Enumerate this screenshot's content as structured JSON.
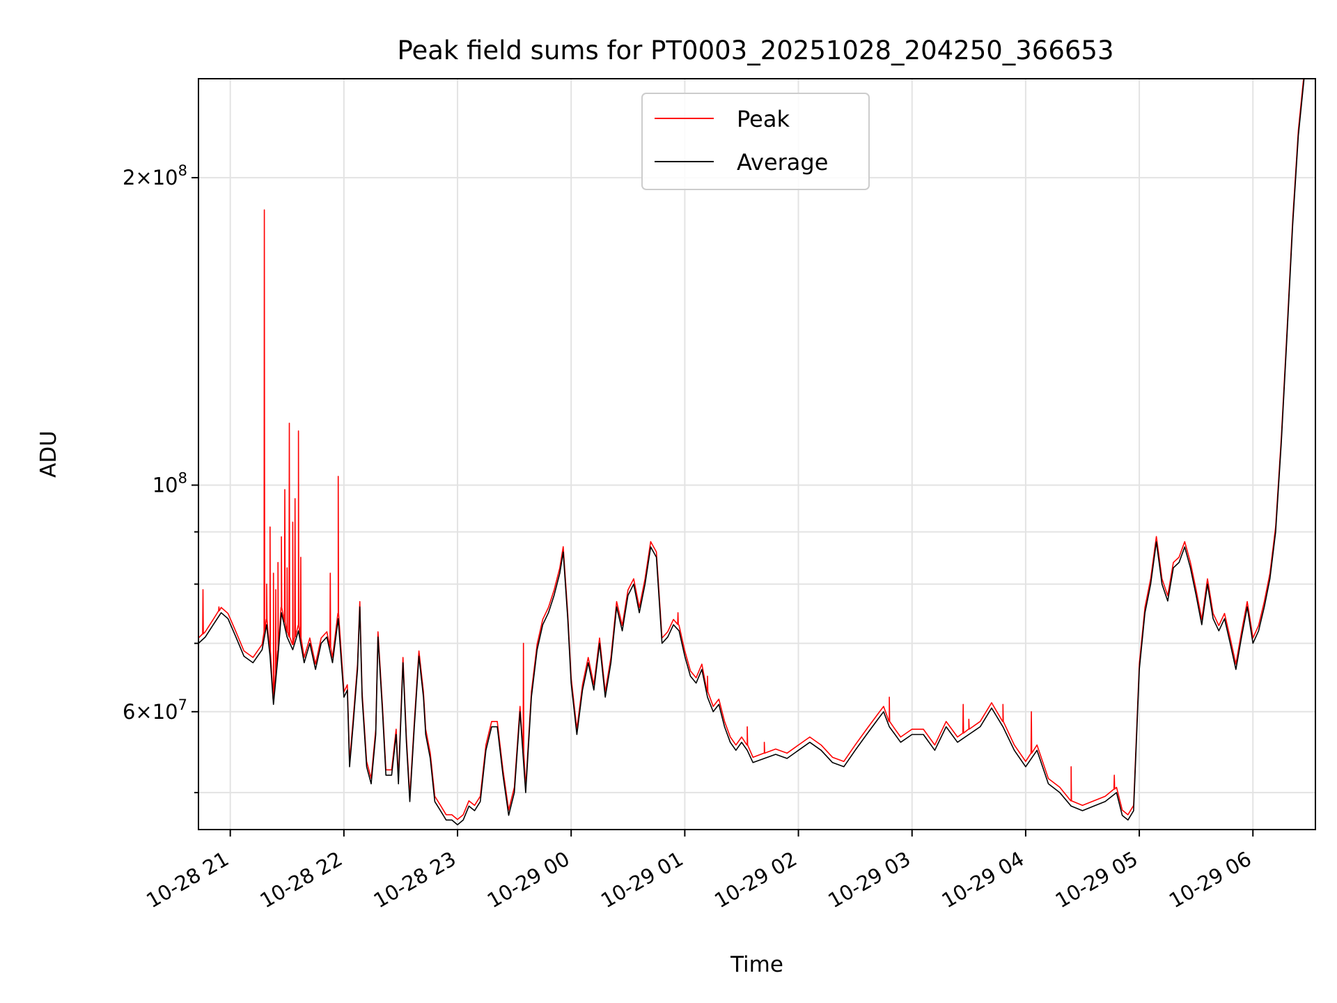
{
  "chart_data": {
    "type": "line",
    "title": "Peak field sums for PT0003_20251028_204250_366653",
    "xlabel": "Time",
    "ylabel": "ADU",
    "x_unit": "hours since 10-28 20:00",
    "xlim": [
      0.72,
      10.55
    ],
    "ylim": [
      46000000,
      250000000
    ],
    "yscale": "log",
    "grid": true,
    "legend_position": "top-center",
    "x_ticks": [
      {
        "x": 1,
        "label": "10-28 21"
      },
      {
        "x": 2,
        "label": "10-28 22"
      },
      {
        "x": 3,
        "label": "10-28 23"
      },
      {
        "x": 4,
        "label": "10-29 00"
      },
      {
        "x": 5,
        "label": "10-29 01"
      },
      {
        "x": 6,
        "label": "10-29 02"
      },
      {
        "x": 7,
        "label": "10-29 03"
      },
      {
        "x": 8,
        "label": "10-29 04"
      },
      {
        "x": 9,
        "label": "10-29 05"
      },
      {
        "x": 10,
        "label": "10-29 06"
      }
    ],
    "y_ticks": [
      {
        "y": 60000000,
        "base": "6",
        "exp": "7"
      },
      {
        "y": 100000000,
        "base": "",
        "exp": "8"
      },
      {
        "y": 200000000,
        "base": "2",
        "exp": "8"
      }
    ],
    "y_minor": [
      50000000,
      70000000,
      80000000,
      90000000,
      300000000
    ],
    "series": [
      {
        "name": "Average",
        "color": "#000000",
        "points": [
          [
            0.72,
            70
          ],
          [
            0.78,
            71
          ],
          [
            0.85,
            73
          ],
          [
            0.92,
            75
          ],
          [
            0.98,
            74
          ],
          [
            1.05,
            71
          ],
          [
            1.12,
            68
          ],
          [
            1.2,
            67
          ],
          [
            1.28,
            69
          ],
          [
            1.32,
            73
          ],
          [
            1.35,
            68
          ],
          [
            1.38,
            61
          ],
          [
            1.42,
            68
          ],
          [
            1.45,
            75
          ],
          [
            1.5,
            71
          ],
          [
            1.55,
            69
          ],
          [
            1.6,
            72
          ],
          [
            1.65,
            67
          ],
          [
            1.7,
            70
          ],
          [
            1.75,
            66
          ],
          [
            1.8,
            70
          ],
          [
            1.85,
            71
          ],
          [
            1.9,
            67
          ],
          [
            1.95,
            74
          ],
          [
            2.0,
            62
          ],
          [
            2.03,
            63
          ],
          [
            2.05,
            53
          ],
          [
            2.08,
            58
          ],
          [
            2.12,
            66
          ],
          [
            2.14,
            76
          ],
          [
            2.16,
            62
          ],
          [
            2.2,
            53
          ],
          [
            2.24,
            51
          ],
          [
            2.28,
            57
          ],
          [
            2.3,
            71
          ],
          [
            2.34,
            60
          ],
          [
            2.37,
            52
          ],
          [
            2.42,
            52
          ],
          [
            2.46,
            57
          ],
          [
            2.48,
            51
          ],
          [
            2.52,
            67
          ],
          [
            2.55,
            56
          ],
          [
            2.58,
            49
          ],
          [
            2.62,
            58
          ],
          [
            2.66,
            68
          ],
          [
            2.7,
            62
          ],
          [
            2.72,
            57
          ],
          [
            2.76,
            54
          ],
          [
            2.8,
            49
          ],
          [
            2.85,
            48
          ],
          [
            2.9,
            47
          ],
          [
            2.95,
            47
          ],
          [
            3.0,
            46.5
          ],
          [
            3.05,
            47
          ],
          [
            3.1,
            48.5
          ],
          [
            3.15,
            48
          ],
          [
            3.2,
            49
          ],
          [
            3.25,
            55
          ],
          [
            3.3,
            58
          ],
          [
            3.35,
            58
          ],
          [
            3.4,
            52
          ],
          [
            3.45,
            47.5
          ],
          [
            3.5,
            50
          ],
          [
            3.55,
            60
          ],
          [
            3.6,
            50
          ],
          [
            3.65,
            62
          ],
          [
            3.7,
            69
          ],
          [
            3.75,
            73
          ],
          [
            3.8,
            75
          ],
          [
            3.85,
            78
          ],
          [
            3.9,
            82
          ],
          [
            3.93,
            86
          ],
          [
            3.97,
            74
          ],
          [
            4.0,
            64
          ],
          [
            4.05,
            57
          ],
          [
            4.1,
            63
          ],
          [
            4.15,
            67
          ],
          [
            4.2,
            63
          ],
          [
            4.25,
            70
          ],
          [
            4.3,
            62
          ],
          [
            4.35,
            67
          ],
          [
            4.4,
            76
          ],
          [
            4.45,
            72
          ],
          [
            4.5,
            78
          ],
          [
            4.55,
            80
          ],
          [
            4.6,
            75
          ],
          [
            4.65,
            80
          ],
          [
            4.7,
            87
          ],
          [
            4.75,
            85
          ],
          [
            4.8,
            70
          ],
          [
            4.85,
            71
          ],
          [
            4.9,
            73
          ],
          [
            4.95,
            72
          ],
          [
            5.0,
            68
          ],
          [
            5.05,
            65
          ],
          [
            5.1,
            64
          ],
          [
            5.15,
            66
          ],
          [
            5.2,
            62
          ],
          [
            5.25,
            60
          ],
          [
            5.3,
            61
          ],
          [
            5.35,
            58
          ],
          [
            5.4,
            56
          ],
          [
            5.45,
            55
          ],
          [
            5.5,
            56
          ],
          [
            5.55,
            55
          ],
          [
            5.6,
            53.5
          ],
          [
            5.7,
            54
          ],
          [
            5.8,
            54.5
          ],
          [
            5.9,
            54
          ],
          [
            6.0,
            55
          ],
          [
            6.1,
            56
          ],
          [
            6.2,
            55
          ],
          [
            6.3,
            53.5
          ],
          [
            6.4,
            53
          ],
          [
            6.5,
            55
          ],
          [
            6.6,
            57
          ],
          [
            6.7,
            59
          ],
          [
            6.75,
            60
          ],
          [
            6.8,
            58
          ],
          [
            6.85,
            57
          ],
          [
            6.9,
            56
          ],
          [
            7.0,
            57
          ],
          [
            7.1,
            57
          ],
          [
            7.2,
            55
          ],
          [
            7.3,
            58
          ],
          [
            7.4,
            56
          ],
          [
            7.5,
            57
          ],
          [
            7.6,
            58
          ],
          [
            7.7,
            60.5
          ],
          [
            7.8,
            58
          ],
          [
            7.9,
            55
          ],
          [
            8.0,
            53
          ],
          [
            8.1,
            55
          ],
          [
            8.2,
            51
          ],
          [
            8.3,
            50
          ],
          [
            8.4,
            48.5
          ],
          [
            8.5,
            48
          ],
          [
            8.6,
            48.5
          ],
          [
            8.7,
            49
          ],
          [
            8.8,
            50
          ],
          [
            8.85,
            47.5
          ],
          [
            8.9,
            47
          ],
          [
            8.95,
            48
          ],
          [
            9.0,
            66
          ],
          [
            9.05,
            75
          ],
          [
            9.1,
            80
          ],
          [
            9.15,
            88
          ],
          [
            9.2,
            80
          ],
          [
            9.25,
            77
          ],
          [
            9.3,
            83
          ],
          [
            9.35,
            84
          ],
          [
            9.4,
            87
          ],
          [
            9.45,
            83
          ],
          [
            9.5,
            78
          ],
          [
            9.55,
            73
          ],
          [
            9.6,
            80
          ],
          [
            9.65,
            74
          ],
          [
            9.7,
            72
          ],
          [
            9.75,
            74
          ],
          [
            9.8,
            70
          ],
          [
            9.85,
            66
          ],
          [
            9.9,
            71
          ],
          [
            9.95,
            76
          ],
          [
            10.0,
            70
          ],
          [
            10.05,
            72
          ],
          [
            10.1,
            76
          ],
          [
            10.15,
            81
          ],
          [
            10.2,
            90
          ],
          [
            10.25,
            110
          ],
          [
            10.3,
            140
          ],
          [
            10.35,
            180
          ],
          [
            10.4,
            220
          ],
          [
            10.45,
            250
          ],
          [
            10.5,
            250
          ],
          [
            10.55,
            250
          ]
        ]
      },
      {
        "name": "Peak",
        "color": "#ff0000",
        "spikes": [
          [
            0.76,
            79
          ],
          [
            0.9,
            76
          ],
          [
            1.3,
            186
          ],
          [
            1.32,
            80
          ],
          [
            1.35,
            91
          ],
          [
            1.38,
            82
          ],
          [
            1.4,
            79
          ],
          [
            1.42,
            84
          ],
          [
            1.45,
            89
          ],
          [
            1.48,
            99
          ],
          [
            1.5,
            83
          ],
          [
            1.52,
            115
          ],
          [
            1.55,
            92
          ],
          [
            1.57,
            97
          ],
          [
            1.6,
            113
          ],
          [
            1.62,
            85
          ],
          [
            1.88,
            82
          ],
          [
            1.95,
            102
          ],
          [
            3.58,
            70
          ],
          [
            4.94,
            75
          ],
          [
            5.2,
            65
          ],
          [
            5.55,
            58
          ],
          [
            5.7,
            56
          ],
          [
            6.8,
            62
          ],
          [
            7.45,
            61
          ],
          [
            7.5,
            59
          ],
          [
            7.8,
            61
          ],
          [
            8.05,
            60
          ],
          [
            8.4,
            53
          ],
          [
            8.78,
            52
          ]
        ]
      }
    ]
  }
}
